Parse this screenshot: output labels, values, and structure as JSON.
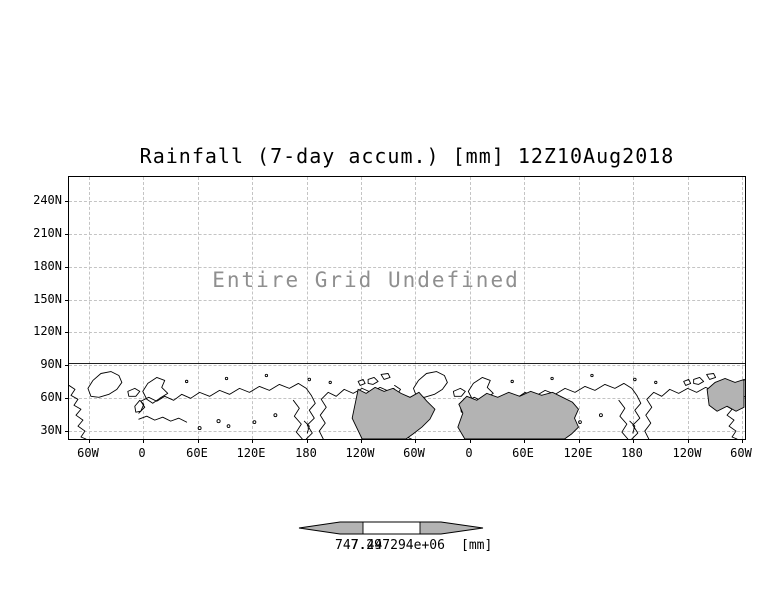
{
  "title": "Rainfall (7-day accum.) [mm] 12Z10Aug2018",
  "plot": {
    "message": "Entire Grid Undefined",
    "y_ticks": [
      "240N",
      "210N",
      "180N",
      "150N",
      "120N",
      "90N",
      "60N",
      "30N"
    ],
    "x_ticks": [
      "60W",
      "0",
      "60E",
      "120E",
      "180",
      "120W",
      "60W",
      "0",
      "60E",
      "120E",
      "180",
      "120W",
      "60W"
    ]
  },
  "colorbar": {
    "min_label": "747.29",
    "max_label": "7.447294e+06",
    "units": "[mm]"
  },
  "colors": {
    "land_fill": "#b3b3b3",
    "grid_line": "#c4c4c4",
    "message_text": "#8f8f8f",
    "frame": "#000000"
  },
  "chart_data": {
    "type": "heatmap",
    "title": "Rainfall (7-day accum.) [mm] 12Z10Aug2018",
    "xlabel": "",
    "ylabel": "",
    "x_tick_labels": [
      "60W",
      "0",
      "60E",
      "120E",
      "180",
      "120W",
      "60W",
      "0",
      "60E",
      "120E",
      "180",
      "120W",
      "60W"
    ],
    "y_tick_labels": [
      "240N",
      "210N",
      "180N",
      "150N",
      "120N",
      "90N",
      "60N",
      "30N"
    ],
    "values": null,
    "annotation": "Entire Grid Undefined",
    "grid": "dashed",
    "legend_position": "bottom",
    "colorbar": {
      "style": "arrow-ends",
      "tick_labels": [
        "747.29",
        "7.447294e+06"
      ],
      "units": "[mm]"
    },
    "basemap": "world coastlines, two longitude cycles (60W to 60W), northern latitudes"
  }
}
